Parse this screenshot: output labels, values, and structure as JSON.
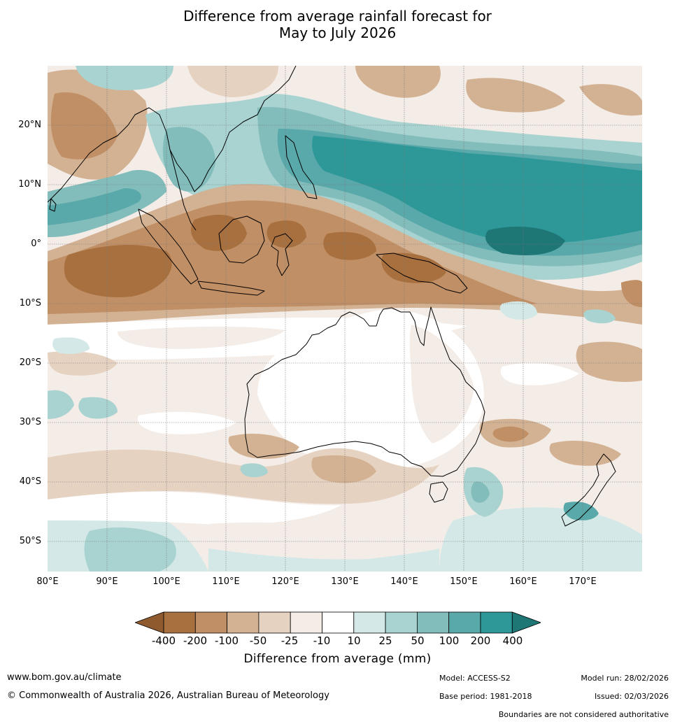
{
  "title": {
    "line1": "Difference from average rainfall forecast for",
    "line2": "May to July 2026"
  },
  "axes": {
    "lat_labels": [
      "20°N",
      "10°N",
      "0°",
      "10°S",
      "20°S",
      "30°S",
      "40°S",
      "50°S"
    ],
    "lon_labels": [
      "80°E",
      "90°E",
      "100°E",
      "110°E",
      "120°E",
      "130°E",
      "140°E",
      "150°E",
      "160°E",
      "170°E"
    ],
    "lon_range": [
      80,
      180
    ],
    "lat_range": [
      -55,
      30
    ]
  },
  "colorbar": {
    "title": "Difference from average (mm)",
    "tick_labels": [
      "-400",
      "-200",
      "-100",
      "-50",
      "-25",
      "-10",
      "10",
      "25",
      "50",
      "100",
      "200",
      "400"
    ],
    "colors": [
      "#8f5a2d",
      "#a8703e",
      "#c18f65",
      "#d3b293",
      "#e6d2c1",
      "#f4ece7",
      "#ffffff",
      "#d4e9e7",
      "#a9d3d1",
      "#82bdbc",
      "#5aa9aa",
      "#2e9899",
      "#1e7675"
    ]
  },
  "footer": {
    "website": "www.bom.gov.au/climate",
    "copyright": "© Commonwealth of Australia 2026, Australian Bureau of Meteorology",
    "model": "Model: ACCESS-S2",
    "model_run": "Model run: 28/02/2026",
    "base_period": "Base period: 1981-2018",
    "issued": "Issued: 02/03/2026",
    "disclaimer": "Boundaries are not considered authoritative"
  }
}
